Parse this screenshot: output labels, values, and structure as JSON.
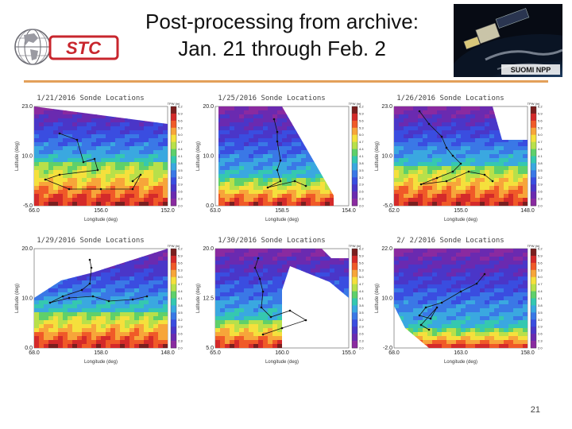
{
  "slide": {
    "title_line1": "Post-processing from archive:",
    "title_line2": "Jan. 21 through Feb. 2",
    "logo_text": "STC",
    "satellite_label": "SUOMI NPP",
    "page_number": "21"
  },
  "panels": [
    {
      "title": "1/21/2016 Sonde Locations",
      "y_ticks": [
        "23.0",
        "10.0",
        "-5.0"
      ],
      "x_ticks": [
        "66.0",
        "156.0",
        "152.0"
      ],
      "xlabel": "Longitude (deg)",
      "ylabel": "Latitude (deg)",
      "cbar_title": "TPW (in)"
    },
    {
      "title": "1/25/2016 Sonde Locations",
      "y_ticks": [
        "20.0",
        "10.0",
        "0.0"
      ],
      "x_ticks": [
        "63.0",
        "158.5",
        "154.0"
      ],
      "xlabel": "Longitude (deg)",
      "ylabel": "Latitude (deg)",
      "cbar_title": "TPW (in)"
    },
    {
      "title": "1/26/2016 Sonde Locations",
      "y_ticks": [
        "23.0",
        "10.0",
        "-5.0"
      ],
      "x_ticks": [
        "62.0",
        "155.0",
        "148.0"
      ],
      "xlabel": "Longitude (deg)",
      "ylabel": "Latitude (deg)",
      "cbar_title": "TPW (in)"
    },
    {
      "title": "1/29/2016 Sonde Locations",
      "y_ticks": [
        "20.0",
        "10.0",
        "0.0"
      ],
      "x_ticks": [
        "68.0",
        "158.0",
        "148.0"
      ],
      "xlabel": "Longitude (deg)",
      "ylabel": "Latitude (deg)",
      "cbar_title": "TPW (in)"
    },
    {
      "title": "1/30/2016 Sonde Locations",
      "y_ticks": [
        "20.0",
        "12.5",
        "5.0"
      ],
      "x_ticks": [
        "65.0",
        "160.0",
        "155.0"
      ],
      "xlabel": "Longitude (deg)",
      "ylabel": "Latitude (deg)",
      "cbar_title": "TPW (in)"
    },
    {
      "title": "2/ 2/2016 Sonde Locations",
      "y_ticks": [
        "22.0",
        "10.0",
        "-2.0"
      ],
      "x_ticks": [
        "68.0",
        "163.0",
        "158.0"
      ],
      "xlabel": "Longitude (deg)",
      "ylabel": "Latitude (deg)",
      "cbar_title": "TPW (in)"
    }
  ],
  "colorbar_labels": [
    "6.2",
    "5.9",
    "5.6",
    "5.3",
    "5.0",
    "4.7",
    "4.4",
    "4.1",
    "3.8",
    "3.5",
    "3.2",
    "2.9",
    "2.6",
    "2.3",
    "2.0"
  ],
  "colors": {
    "accent_rule": "#e3a05a",
    "logo_red": "#c8262d",
    "colorbar": [
      "#7a1f1f",
      "#d42a2a",
      "#f05a28",
      "#f7a53a",
      "#f5e03c",
      "#b8e04a",
      "#5fd06a",
      "#35c8b0",
      "#3aa8e0",
      "#3a78e6",
      "#3a4de0",
      "#4a36c8",
      "#6a2ab0",
      "#8a2aa0"
    ]
  }
}
